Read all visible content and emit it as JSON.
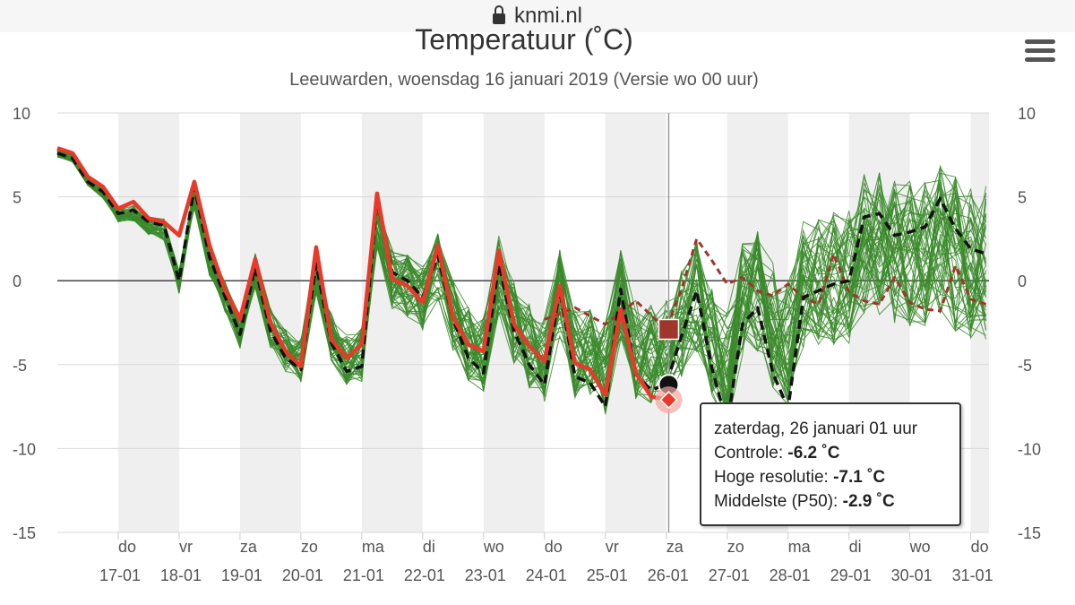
{
  "browser": {
    "url": "knmi.nl"
  },
  "chart_data": {
    "type": "line",
    "title": "Temperatuur (˚C)",
    "subtitle": "Leeuwarden, woensdag 16 januari 2019 (Versie wo 00 uur)",
    "ylim": [
      -15,
      10
    ],
    "yticks": [
      "10",
      "5",
      "0",
      "-5",
      "-10",
      "-15"
    ],
    "xlim": [
      16.0,
      31.3
    ],
    "xticks": [
      {
        "x": 17,
        "day": "do",
        "date": "17-01"
      },
      {
        "x": 18,
        "day": "vr",
        "date": "18-01"
      },
      {
        "x": 19,
        "day": "za",
        "date": "19-01"
      },
      {
        "x": 20,
        "day": "zo",
        "date": "20-01"
      },
      {
        "x": 21,
        "day": "ma",
        "date": "21-01"
      },
      {
        "x": 22,
        "day": "di",
        "date": "22-01"
      },
      {
        "x": 23,
        "day": "wo",
        "date": "23-01"
      },
      {
        "x": 24,
        "day": "do",
        "date": "24-01"
      },
      {
        "x": 25,
        "day": "vr",
        "date": "25-01"
      },
      {
        "x": 26,
        "day": "za",
        "date": "26-01"
      },
      {
        "x": 27,
        "day": "zo",
        "date": "27-01"
      },
      {
        "x": 28,
        "day": "ma",
        "date": "28-01"
      },
      {
        "x": 29,
        "day": "di",
        "date": "29-01"
      },
      {
        "x": 30,
        "day": "wo",
        "date": "30-01"
      },
      {
        "x": 31,
        "day": "do",
        "date": "31-01"
      }
    ],
    "series": [
      {
        "name": "Hoge resolutie",
        "color": "#e8392a",
        "x": [
          16.0,
          16.25,
          16.5,
          16.75,
          17.0,
          17.25,
          17.5,
          17.75,
          18.0,
          18.25,
          18.5,
          18.75,
          19.0,
          19.25,
          19.5,
          19.75,
          20.0,
          20.25,
          20.5,
          20.75,
          21.0,
          21.25,
          21.5,
          21.75,
          22.0,
          22.25,
          22.5,
          22.75,
          23.0,
          23.25,
          23.5,
          23.75,
          24.0,
          24.25,
          24.5,
          24.75,
          25.0,
          25.25,
          25.5,
          25.75,
          26.04
        ],
        "values": [
          7.9,
          7.6,
          6.2,
          5.6,
          4.3,
          4.7,
          3.7,
          3.5,
          2.7,
          5.9,
          2.1,
          -0.5,
          -2.3,
          1.3,
          -2.5,
          -4.2,
          -5.1,
          2.0,
          -3.5,
          -4.6,
          -3.8,
          5.2,
          0.1,
          -0.3,
          -1.3,
          2.1,
          -2.2,
          -3.8,
          -4.2,
          1.8,
          -2.6,
          -3.9,
          -4.8,
          -0.3,
          -4.9,
          -5.3,
          -6.8,
          -1.7,
          -5.5,
          -6.9,
          -7.1
        ]
      },
      {
        "name": "Controle",
        "color": "#111111",
        "dash": "10,6",
        "x": [
          16.0,
          16.25,
          16.5,
          16.75,
          17.0,
          17.25,
          17.5,
          17.75,
          18.0,
          18.25,
          18.5,
          18.75,
          19.0,
          19.25,
          19.5,
          19.75,
          20.0,
          20.25,
          20.5,
          20.75,
          21.0,
          21.25,
          21.5,
          21.75,
          22.0,
          22.25,
          22.5,
          22.75,
          23.0,
          23.25,
          23.5,
          23.75,
          24.0,
          24.25,
          24.5,
          24.75,
          25.0,
          25.25,
          25.5,
          25.75,
          26.0,
          26.25,
          26.5,
          26.75,
          27.0,
          27.25,
          27.5,
          27.75,
          28.0,
          28.25,
          28.5,
          28.75,
          29.0,
          29.25,
          29.5,
          29.75,
          30.0,
          30.25,
          30.5,
          30.75,
          31.0,
          31.25
        ],
        "values": [
          7.6,
          7.3,
          5.9,
          5.3,
          4.0,
          4.2,
          3.5,
          3.3,
          0.0,
          5.6,
          1.4,
          -0.9,
          -3.2,
          0.8,
          -3.0,
          -4.6,
          -5.3,
          1.0,
          -3.7,
          -5.4,
          -5.1,
          4.8,
          0.5,
          0.0,
          -1.0,
          1.5,
          -2.3,
          -4.6,
          -5.5,
          1.0,
          -3.0,
          -5.0,
          -6.2,
          -0.5,
          -5.7,
          -6.1,
          -7.5,
          -0.5,
          -5.6,
          -6.5,
          -6.2,
          -3.3,
          -0.6,
          -5.2,
          -8.6,
          -2.6,
          -1.6,
          -5.5,
          -7.6,
          -1.0,
          -0.6,
          -0.2,
          0.0,
          3.8,
          4.0,
          2.7,
          2.9,
          3.2,
          4.9,
          3.1,
          1.9,
          1.6
        ]
      },
      {
        "name": "Middelste (P50)",
        "color": "#a0352c",
        "dash": "7,5",
        "x": [
          24.0,
          24.5,
          25.0,
          25.5,
          26.0,
          26.25,
          26.5,
          26.75,
          27.0,
          27.25,
          27.5,
          27.75,
          28.0,
          28.25,
          28.5,
          28.75,
          29.0,
          29.25,
          29.5,
          29.75,
          30.0,
          30.25,
          30.5,
          30.75,
          31.0,
          31.25
        ],
        "values": [
          -2.3,
          -1.6,
          -2.6,
          -1.2,
          -2.9,
          -0.5,
          2.5,
          1.2,
          -0.2,
          0.2,
          -0.6,
          -0.9,
          -0.2,
          -1.0,
          -1.4,
          1.6,
          -0.7,
          -1.2,
          -1.4,
          0.2,
          -1.3,
          -1.7,
          -1.8,
          0.9,
          -1.1,
          -1.4
        ]
      }
    ],
    "ensemble_members": 50,
    "crosshair_x": 26.04,
    "highlight_points": [
      {
        "series": "Controle",
        "x": 26.04,
        "y": -6.2
      },
      {
        "series": "Hoge resolutie",
        "x": 26.04,
        "y": -7.1
      },
      {
        "series": "Middelste (P50)",
        "x": 26.04,
        "y": -2.9
      }
    ]
  },
  "tooltip": {
    "heading": "zaterdag, 26 januari 01 uur",
    "rows": [
      {
        "label": "Controle: ",
        "value": "-6.2",
        "unit": " ˚C"
      },
      {
        "label": "Hoge resolutie: ",
        "value": "-7.1",
        "unit": " ˚C"
      },
      {
        "label": "Middelste (P50): ",
        "value": "-2.9",
        "unit": " ˚C"
      }
    ]
  }
}
